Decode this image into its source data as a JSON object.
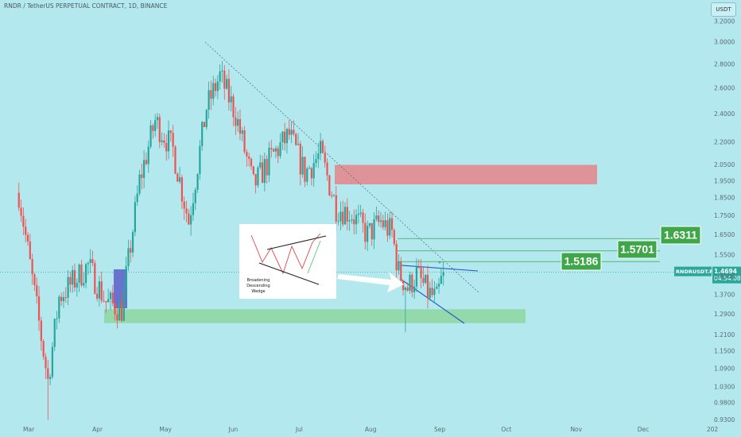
{
  "header": {
    "title": "RNDR / TetherUS PERPETUAL CONTRACT, 1D, BINANCE",
    "currency_button": "USDT"
  },
  "colors": {
    "background": "#b3e8ef",
    "up": "#26a69a",
    "down": "#ef5350",
    "target_box": "#3fa64a",
    "resistance_zone": "#e08e93",
    "support_zone": "#92d8a8",
    "order_block": "#6a72d0",
    "price_label": "#2aa79b"
  },
  "price_label": {
    "symbol": "RNDRUSDT.P",
    "price": "1.4694",
    "countdown": "04:54:08"
  },
  "targets": [
    "1.5186",
    "1.5701",
    "1.6311"
  ],
  "inset": {
    "text_lines": [
      "Broadening",
      "Descending",
      "Wedge"
    ]
  },
  "chart_data": {
    "type": "candlestick",
    "title": "RNDR / TetherUS PERPETUAL CONTRACT, 1D, BINANCE",
    "y_scale": "log",
    "ylim": [
      0.9,
      3.3
    ],
    "y_ticks": [
      "3.2000",
      "3.0000",
      "2.8000",
      "2.6000",
      "2.4000",
      "2.2000",
      "2.0500",
      "1.9500",
      "1.8500",
      "1.7500",
      "1.6500",
      "1.5500",
      "1.4500",
      "1.3700",
      "1.2900",
      "1.2100",
      "1.1500",
      "1.0900",
      "1.0300",
      "0.9800",
      "0.9300"
    ],
    "x_ticks": [
      "Mar",
      "Apr",
      "May",
      "Jun",
      "Jul",
      "Aug",
      "Sep",
      "Oct",
      "Nov",
      "Dec",
      "202"
    ],
    "current_price": 1.4694,
    "target_levels": [
      1.5186,
      1.5701,
      1.6311
    ],
    "resistance_zone": [
      1.93,
      2.05
    ],
    "support_zone": [
      1.255,
      1.31
    ],
    "series_anchor_closes": [
      {
        "date": "2023-02-25",
        "close": 1.88
      },
      {
        "date": "2023-03-10",
        "close": 1.05
      },
      {
        "date": "2023-03-15",
        "close": 1.36
      },
      {
        "date": "2023-03-28",
        "close": 1.5
      },
      {
        "date": "2023-04-05",
        "close": 1.34
      },
      {
        "date": "2023-04-12",
        "close": 1.31
      },
      {
        "date": "2023-04-20",
        "close": 1.95
      },
      {
        "date": "2023-04-27",
        "close": 2.35
      },
      {
        "date": "2023-05-05",
        "close": 2.15
      },
      {
        "date": "2023-05-12",
        "close": 1.72
      },
      {
        "date": "2023-05-20",
        "close": 2.45
      },
      {
        "date": "2023-05-26",
        "close": 2.7
      },
      {
        "date": "2023-06-02",
        "close": 2.4
      },
      {
        "date": "2023-06-10",
        "close": 1.92
      },
      {
        "date": "2023-06-18",
        "close": 2.1
      },
      {
        "date": "2023-06-26",
        "close": 2.25
      },
      {
        "date": "2023-07-03",
        "close": 2.0
      },
      {
        "date": "2023-07-10",
        "close": 2.12
      },
      {
        "date": "2023-07-17",
        "close": 1.8
      },
      {
        "date": "2023-07-24",
        "close": 1.76
      },
      {
        "date": "2023-07-31",
        "close": 1.65
      },
      {
        "date": "2023-08-06",
        "close": 1.72
      },
      {
        "date": "2023-08-11",
        "close": 1.66
      },
      {
        "date": "2023-08-14",
        "close": 1.47
      },
      {
        "date": "2023-08-18",
        "close": 1.4
      },
      {
        "date": "2023-08-22",
        "close": 1.46
      },
      {
        "date": "2023-08-27",
        "close": 1.38
      },
      {
        "date": "2023-08-31",
        "close": 1.35
      },
      {
        "date": "2023-09-03",
        "close": 1.4694
      }
    ]
  }
}
